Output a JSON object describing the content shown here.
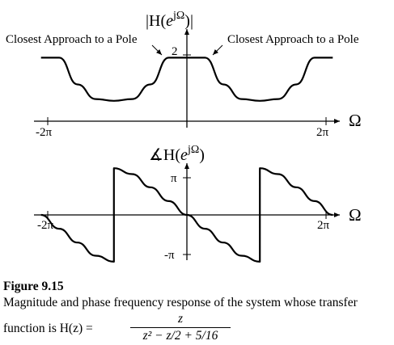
{
  "chart_data": [
    {
      "type": "line",
      "title": "|H(e^{jΩ})|",
      "title_parts": {
        "prefix": "|H(",
        "base": "e",
        "exp": "jΩ",
        "suffix": ")|"
      },
      "xlabel": "Ω",
      "x_ticks": [
        "-2π",
        "2π"
      ],
      "y_ticks": [
        "2"
      ],
      "xlim": [
        -6.9,
        6.9
      ],
      "ylim": [
        0,
        2.4
      ],
      "grid": false,
      "annotations": [
        "Closest Approach to a Pole",
        "Closest Approach to a Pole"
      ],
      "series": [
        {
          "x": [
            "-2π",
            "-7π/4",
            "-3π/2",
            "-5π/4",
            "-π",
            "-3π/4",
            "-π/2",
            "-π/4",
            "0",
            "π/4",
            "π/2",
            "3π/4",
            "π",
            "5π/4",
            "3π/2",
            "7π/4",
            "2π"
          ],
          "values": [
            1.78,
            1.78,
            1.03,
            0.62,
            0.57,
            0.62,
            1.03,
            1.78,
            1.78,
            1.78,
            1.03,
            0.62,
            0.57,
            0.62,
            1.03,
            1.78,
            1.78
          ]
        }
      ]
    },
    {
      "type": "line",
      "title": "∡H(e^{jΩ})",
      "title_parts": {
        "prefix": "∡H(",
        "base": "e",
        "exp": "jΩ",
        "suffix": ")"
      },
      "xlabel": "Ω",
      "x_ticks": [
        "-2π",
        "2π"
      ],
      "y_ticks": [
        "π",
        "-π"
      ],
      "xlim": [
        -6.9,
        6.9
      ],
      "ylim": [
        -3.6,
        3.6
      ],
      "grid": false,
      "series": [
        {
          "x": [
            "-2π",
            "-7π/4",
            "-3π/2",
            "-5π/4",
            "-π",
            "-π",
            "-3π/4",
            "-π/2",
            "-π/4",
            "0",
            "π/4",
            "π/2",
            "3π/4",
            "π",
            "π",
            "5π/4",
            "3π/2",
            "7π/4",
            "2π"
          ],
          "values": [
            0,
            -0.79,
            -1.58,
            -2.33,
            -2.67,
            2.67,
            2.33,
            1.58,
            0.79,
            0,
            -0.79,
            -1.58,
            -2.33,
            -2.67,
            2.67,
            2.33,
            1.58,
            0.79,
            0
          ]
        }
      ]
    }
  ],
  "caption": {
    "figure_label": "Figure 9.15",
    "line1": "Magnitude and phase frequency response of the system whose transfer",
    "line2_lead": "function is H(z) =",
    "tf_numerator": "z",
    "tf_denominator": "z² − z/2 + 5/16"
  }
}
